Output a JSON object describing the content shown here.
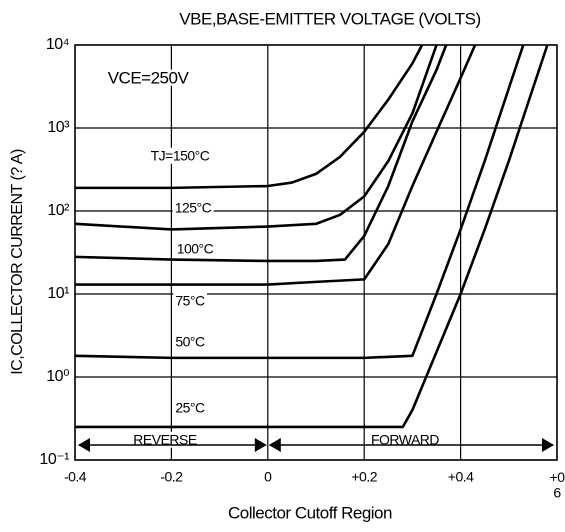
{
  "chart_data": {
    "type": "line",
    "title": "VBE,BASE-EMITTER VOLTAGE (VOLTS)",
    "x_label": "Collector Cutoff Region",
    "y_label": "IC,COLLECTOR CURRENT (? A)",
    "log_y": true,
    "grid": true,
    "xlim": [
      -0.4,
      0.6
    ],
    "ylim": [
      0.1,
      10000
    ],
    "xticks": [
      {
        "value": -0.4,
        "label": "-0.4"
      },
      {
        "value": -0.2,
        "label": "-0.2"
      },
      0,
      {
        "value": 0.2,
        "label": "+0.2"
      },
      {
        "value": 0.4,
        "label": "+0.4"
      },
      {
        "value": 0.6,
        "label": "+0\n6"
      }
    ],
    "yticks": [
      {
        "value": 0.1,
        "label": "10⁻¹"
      },
      {
        "value": 1,
        "label": "10⁰"
      },
      {
        "value": 10,
        "label": "10¹"
      },
      {
        "value": 100,
        "label": "10²"
      },
      {
        "value": 1000,
        "label": "10³"
      },
      {
        "value": 10000,
        "label": "10⁴"
      }
    ],
    "series": [
      {
        "name": "TJ=150°C",
        "color": "#000000",
        "x": [
          -0.4,
          -0.2,
          0,
          0.05,
          0.1,
          0.15,
          0.2,
          0.25,
          0.3,
          0.32
        ],
        "values": [
          190,
          190,
          200,
          220,
          280,
          450,
          900,
          2200,
          6000,
          10000
        ]
      },
      {
        "name": "125°C",
        "color": "#000000",
        "x": [
          -0.4,
          -0.2,
          0,
          0.1,
          0.15,
          0.2,
          0.25,
          0.3,
          0.35
        ],
        "values": [
          70,
          60,
          65,
          70,
          90,
          150,
          400,
          1500,
          10000
        ]
      },
      {
        "name": "100°C",
        "color": "#000000",
        "x": [
          -0.4,
          -0.2,
          0,
          0.1,
          0.16,
          0.2,
          0.25,
          0.3,
          0.35,
          0.37
        ],
        "values": [
          28,
          26,
          25,
          25,
          26,
          50,
          200,
          1200,
          5000,
          10000
        ]
      },
      {
        "name": "75°C",
        "color": "#000000",
        "x": [
          -0.4,
          -0.2,
          0,
          0.1,
          0.2,
          0.25,
          0.3,
          0.35,
          0.4,
          0.43
        ],
        "values": [
          13,
          13,
          13,
          14,
          15,
          40,
          200,
          900,
          4000,
          10000
        ]
      },
      {
        "name": "50°C",
        "color": "#000000",
        "x": [
          -0.4,
          -0.2,
          0,
          0.2,
          0.3,
          0.35,
          0.4,
          0.45,
          0.5,
          0.53
        ],
        "values": [
          1.8,
          1.7,
          1.7,
          1.7,
          1.8,
          10,
          60,
          400,
          3000,
          10000
        ]
      },
      {
        "name": "25°C",
        "color": "#000000",
        "x": [
          -0.4,
          -0.2,
          0,
          0.2,
          0.28,
          0.3,
          0.35,
          0.4,
          0.45,
          0.5,
          0.55,
          0.58
        ],
        "values": [
          0.25,
          0.25,
          0.25,
          0.25,
          0.25,
          0.4,
          2,
          10,
          60,
          400,
          3000,
          10000
        ]
      }
    ],
    "annotations": [
      "VCE=250V",
      "REVERSE",
      "FORWARD"
    ]
  }
}
